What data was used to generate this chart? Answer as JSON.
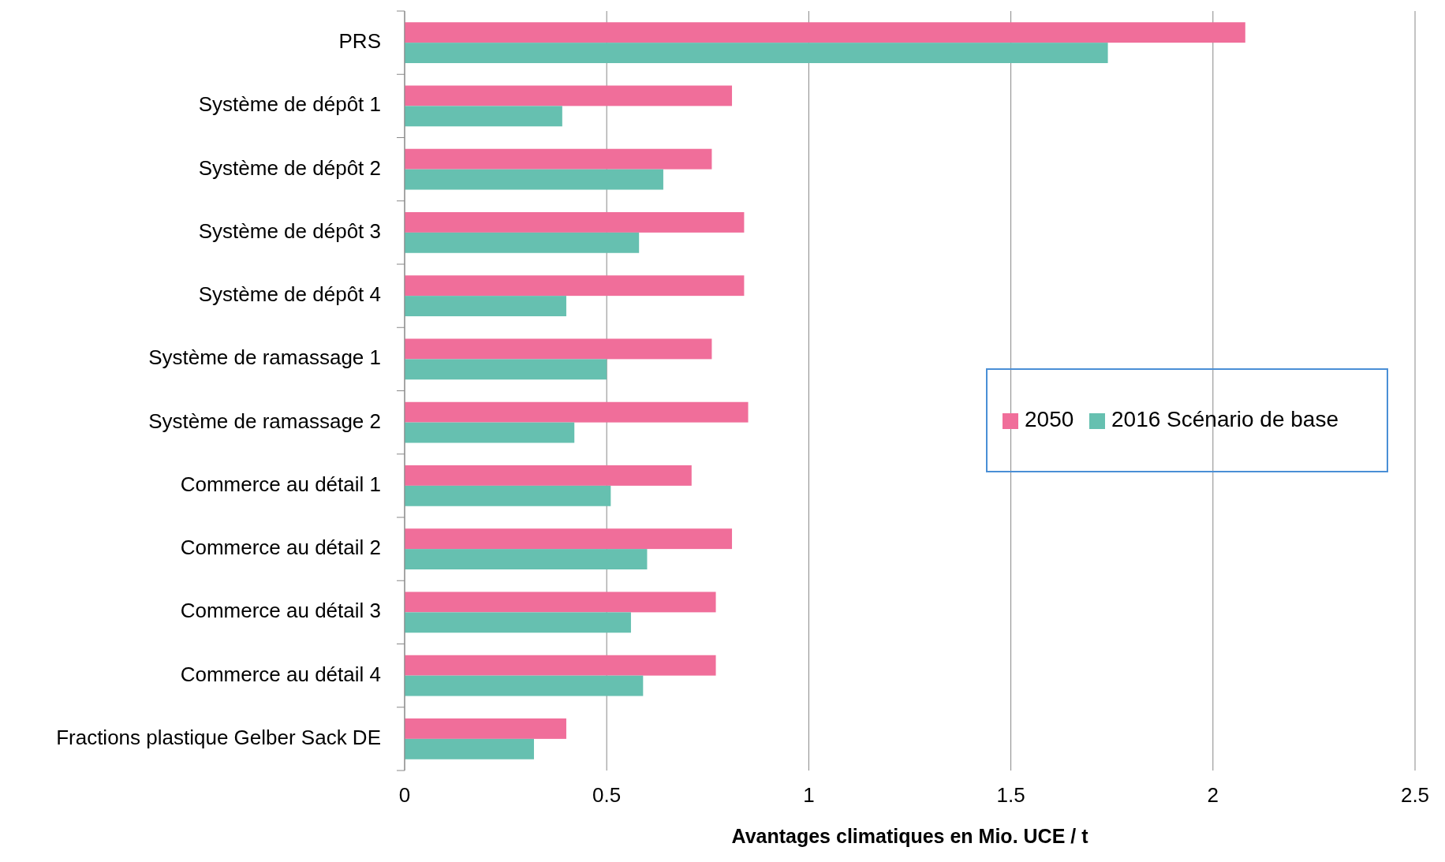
{
  "chart_data": {
    "type": "bar",
    "orientation": "horizontal",
    "xlabel": "Avantages climatiques en Mio. UCE / t",
    "categories": [
      "PRS",
      "Système de dépôt 1",
      "Système de dépôt 2",
      "Système de dépôt 3",
      "Système de dépôt 4",
      "Système de ramassage 1",
      "Système de ramassage 2",
      "Commerce au détail 1",
      "Commerce au détail 2",
      "Commerce au détail 3",
      "Commerce au détail 4",
      "Fractions plastique Gelber Sack DE"
    ],
    "series": [
      {
        "name": "2050",
        "color": "#f06e9a",
        "values": [
          2.08,
          0.81,
          0.76,
          0.84,
          0.84,
          0.76,
          0.85,
          0.71,
          0.81,
          0.77,
          0.77,
          0.4
        ]
      },
      {
        "name": "2016 Scénario de base",
        "color": "#66c0b0",
        "values": [
          1.74,
          0.39,
          0.64,
          0.58,
          0.4,
          0.5,
          0.42,
          0.51,
          0.6,
          0.56,
          0.59,
          0.32
        ]
      }
    ],
    "xlim": [
      0,
      2.5
    ],
    "xticks": [
      0,
      0.5,
      1,
      1.5,
      2,
      2.5
    ],
    "grid": "x",
    "legend": "right"
  }
}
